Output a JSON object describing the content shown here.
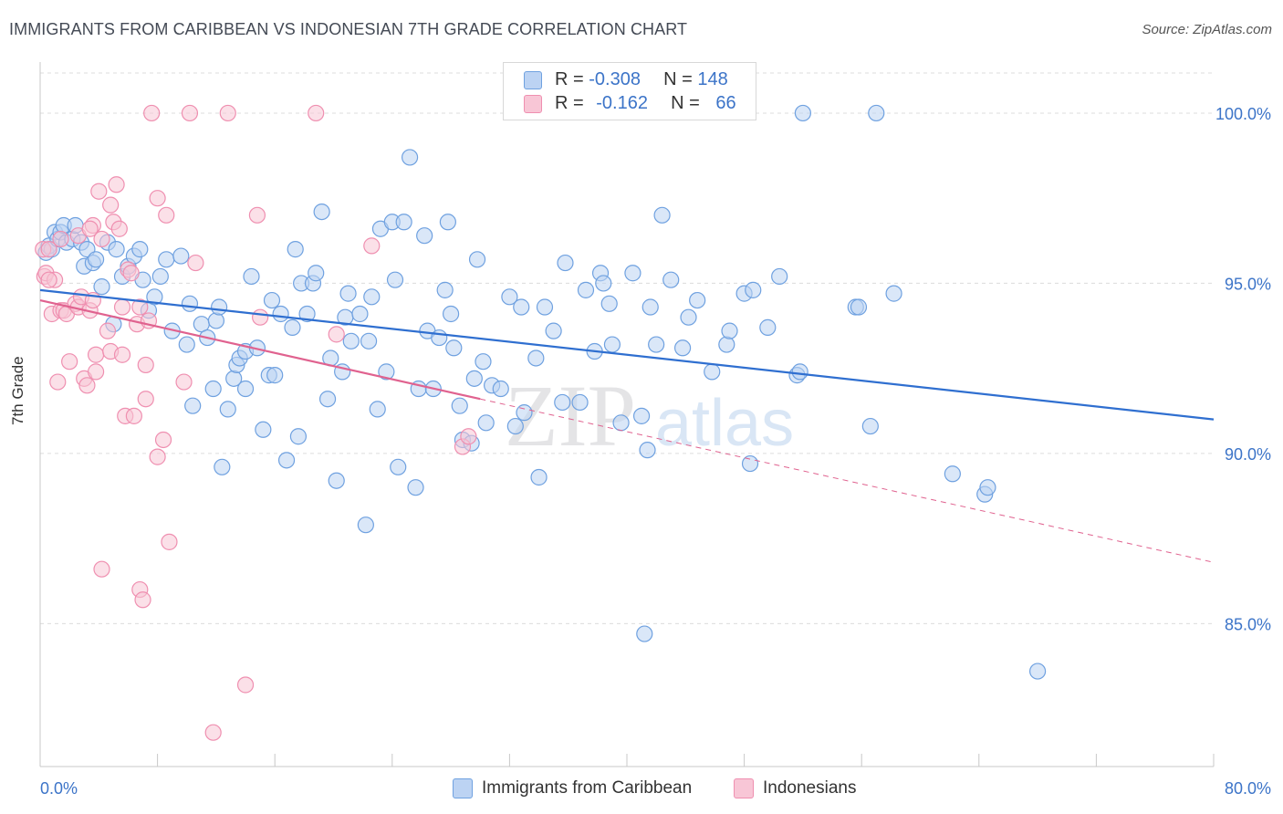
{
  "title": "IMMIGRANTS FROM CARIBBEAN VS INDONESIAN 7TH GRADE CORRELATION CHART",
  "source": "Source: ZipAtlas.com",
  "watermark": {
    "zip": "ZIP",
    "atlas": "atlas"
  },
  "legend": {
    "series1": {
      "r_label": "R = ",
      "r_value": "-0.308",
      "n_label": "N = ",
      "n_value": "148"
    },
    "series2": {
      "r_label": "R = ",
      "r_value": "-0.162",
      "n_label": "N = ",
      "n_value": "66"
    }
  },
  "bottom_legend": {
    "series1": "Immigrants from Caribbean",
    "series2": "Indonesians"
  },
  "colors": {
    "blue": "#6fa1e0",
    "blue_fill": "#bcd3f3",
    "blue_line": "#2f6fd0",
    "pink": "#ef8fb0",
    "pink_fill": "#f8c6d6",
    "pink_line": "#e0628f",
    "axis_text": "#3c74c8"
  },
  "chart_data": {
    "type": "scatter",
    "xlabel": "",
    "ylabel": "7th Grade",
    "xlim": [
      0,
      80
    ],
    "ylim": [
      80.8,
      101.5
    ],
    "x_tick_labels": [
      {
        "value": 0,
        "label": "0.0%"
      },
      {
        "value": 80,
        "label": "80.0%"
      }
    ],
    "y_ticks": [
      {
        "value": 85,
        "label": "85.0%"
      },
      {
        "value": 90,
        "label": "90.0%"
      },
      {
        "value": 95,
        "label": "95.0%"
      },
      {
        "value": 100,
        "label": "100.0%"
      }
    ],
    "x_minor_ticks": [
      0,
      8,
      16,
      24,
      32,
      40,
      48,
      56,
      64,
      72,
      80
    ],
    "series": [
      {
        "name": "Immigrants from Caribbean",
        "color": "#6fa1e0",
        "trend": {
          "x0": 0,
          "y0": 94.8,
          "x1": 80,
          "y1": 91.0,
          "style": "solid"
        },
        "points": [
          [
            0.4,
            95.9
          ],
          [
            0.6,
            96.1
          ],
          [
            0.8,
            96.0
          ],
          [
            1.0,
            96.5
          ],
          [
            1.2,
            96.3
          ],
          [
            1.4,
            96.5
          ],
          [
            1.6,
            96.7
          ],
          [
            1.8,
            96.2
          ],
          [
            2.2,
            96.3
          ],
          [
            2.4,
            96.7
          ],
          [
            2.8,
            96.2
          ],
          [
            3.0,
            95.5
          ],
          [
            3.2,
            96.0
          ],
          [
            3.6,
            95.6
          ],
          [
            3.8,
            95.7
          ],
          [
            4.2,
            94.9
          ],
          [
            4.6,
            96.2
          ],
          [
            5.0,
            93.8
          ],
          [
            5.2,
            96.0
          ],
          [
            5.6,
            95.2
          ],
          [
            6.0,
            95.5
          ],
          [
            6.4,
            95.8
          ],
          [
            6.8,
            96.0
          ],
          [
            7.0,
            95.1
          ],
          [
            7.4,
            94.2
          ],
          [
            7.8,
            94.6
          ],
          [
            8.2,
            95.2
          ],
          [
            8.6,
            95.7
          ],
          [
            9.0,
            93.6
          ],
          [
            9.6,
            95.8
          ],
          [
            10.0,
            93.2
          ],
          [
            10.2,
            94.4
          ],
          [
            10.4,
            91.4
          ],
          [
            11.0,
            93.8
          ],
          [
            11.4,
            93.4
          ],
          [
            11.8,
            91.9
          ],
          [
            12.0,
            93.9
          ],
          [
            12.2,
            94.3
          ],
          [
            12.4,
            89.6
          ],
          [
            12.8,
            91.3
          ],
          [
            13.2,
            92.2
          ],
          [
            13.4,
            92.6
          ],
          [
            13.6,
            92.8
          ],
          [
            14.0,
            93.0
          ],
          [
            14.0,
            91.9
          ],
          [
            14.4,
            95.2
          ],
          [
            14.8,
            93.1
          ],
          [
            15.2,
            90.7
          ],
          [
            15.6,
            92.3
          ],
          [
            15.8,
            94.5
          ],
          [
            16.0,
            92.3
          ],
          [
            16.4,
            94.1
          ],
          [
            16.8,
            89.8
          ],
          [
            17.2,
            93.7
          ],
          [
            17.4,
            96.0
          ],
          [
            17.6,
            90.5
          ],
          [
            17.8,
            95.0
          ],
          [
            18.2,
            94.1
          ],
          [
            18.6,
            95.0
          ],
          [
            18.8,
            95.3
          ],
          [
            19.2,
            97.1
          ],
          [
            19.6,
            91.6
          ],
          [
            19.8,
            92.8
          ],
          [
            20.2,
            89.2
          ],
          [
            20.6,
            92.4
          ],
          [
            20.8,
            94.0
          ],
          [
            21.0,
            94.7
          ],
          [
            21.2,
            93.3
          ],
          [
            21.8,
            94.1
          ],
          [
            22.2,
            87.9
          ],
          [
            22.4,
            93.3
          ],
          [
            22.6,
            94.6
          ],
          [
            23.0,
            91.3
          ],
          [
            23.2,
            96.6
          ],
          [
            23.6,
            92.4
          ],
          [
            24.0,
            96.8
          ],
          [
            24.2,
            95.1
          ],
          [
            24.4,
            89.6
          ],
          [
            24.8,
            96.8
          ],
          [
            25.2,
            98.7
          ],
          [
            25.6,
            89.0
          ],
          [
            25.8,
            91.9
          ],
          [
            26.2,
            96.4
          ],
          [
            26.4,
            93.6
          ],
          [
            26.8,
            91.9
          ],
          [
            27.2,
            93.4
          ],
          [
            27.6,
            94.8
          ],
          [
            27.8,
            96.8
          ],
          [
            28.0,
            94.1
          ],
          [
            28.2,
            93.1
          ],
          [
            28.6,
            91.4
          ],
          [
            28.8,
            90.4
          ],
          [
            29.4,
            90.3
          ],
          [
            29.6,
            92.2
          ],
          [
            29.8,
            95.7
          ],
          [
            30.2,
            92.7
          ],
          [
            30.4,
            90.9
          ],
          [
            30.8,
            92.0
          ],
          [
            31.4,
            91.9
          ],
          [
            32.0,
            94.6
          ],
          [
            32.4,
            90.8
          ],
          [
            32.8,
            94.3
          ],
          [
            33.0,
            91.2
          ],
          [
            33.8,
            92.8
          ],
          [
            34.0,
            89.3
          ],
          [
            34.4,
            94.3
          ],
          [
            35.0,
            93.6
          ],
          [
            35.6,
            91.5
          ],
          [
            35.8,
            95.6
          ],
          [
            36.8,
            91.5
          ],
          [
            37.2,
            94.8
          ],
          [
            37.8,
            93.0
          ],
          [
            38.2,
            95.3
          ],
          [
            38.4,
            95.0
          ],
          [
            38.8,
            94.4
          ],
          [
            39.0,
            93.2
          ],
          [
            39.6,
            90.9
          ],
          [
            40.4,
            95.3
          ],
          [
            41.0,
            91.1
          ],
          [
            41.4,
            90.1
          ],
          [
            41.6,
            94.3
          ],
          [
            42.0,
            93.2
          ],
          [
            42.4,
            97.0
          ],
          [
            43.0,
            95.1
          ],
          [
            43.8,
            93.1
          ],
          [
            44.2,
            94.0
          ],
          [
            44.8,
            94.5
          ],
          [
            45.8,
            92.4
          ],
          [
            46.8,
            93.2
          ],
          [
            47.0,
            93.6
          ],
          [
            48.0,
            94.7
          ],
          [
            48.4,
            89.7
          ],
          [
            48.6,
            94.8
          ],
          [
            49.6,
            93.7
          ],
          [
            50.4,
            95.2
          ],
          [
            51.6,
            92.3
          ],
          [
            51.8,
            92.4
          ],
          [
            52.0,
            100.0
          ],
          [
            55.6,
            94.3
          ],
          [
            55.8,
            94.3
          ],
          [
            56.6,
            90.8
          ],
          [
            57.0,
            100.0
          ],
          [
            58.2,
            94.7
          ],
          [
            62.2,
            89.4
          ],
          [
            64.4,
            88.8
          ],
          [
            64.6,
            89.0
          ],
          [
            68.0,
            83.6
          ],
          [
            41.2,
            84.7
          ]
        ]
      },
      {
        "name": "Indonesians",
        "color": "#ef8fb0",
        "trend": {
          "x0": 0,
          "y0": 94.5,
          "x1": 30.0,
          "y1": 91.6,
          "style": "solid",
          "ext_x1": 80,
          "ext_y1": 86.8
        },
        "points": [
          [
            0.2,
            96.0
          ],
          [
            0.3,
            95.2
          ],
          [
            0.4,
            95.3
          ],
          [
            0.6,
            96.0
          ],
          [
            0.8,
            94.1
          ],
          [
            1.0,
            95.1
          ],
          [
            1.2,
            92.1
          ],
          [
            1.4,
            94.2
          ],
          [
            1.6,
            94.2
          ],
          [
            1.8,
            94.1
          ],
          [
            2.0,
            92.7
          ],
          [
            2.4,
            94.4
          ],
          [
            2.6,
            94.3
          ],
          [
            2.8,
            94.6
          ],
          [
            3.0,
            92.2
          ],
          [
            3.2,
            92.0
          ],
          [
            3.4,
            94.2
          ],
          [
            3.6,
            94.5
          ],
          [
            3.6,
            96.7
          ],
          [
            3.8,
            92.4
          ],
          [
            3.8,
            92.9
          ],
          [
            4.0,
            97.7
          ],
          [
            4.2,
            96.3
          ],
          [
            4.6,
            93.6
          ],
          [
            4.8,
            93.0
          ],
          [
            4.8,
            97.3
          ],
          [
            5.0,
            96.8
          ],
          [
            5.2,
            97.9
          ],
          [
            5.4,
            96.6
          ],
          [
            5.6,
            94.3
          ],
          [
            5.6,
            92.9
          ],
          [
            5.8,
            91.1
          ],
          [
            6.0,
            95.4
          ],
          [
            6.2,
            95.3
          ],
          [
            6.4,
            91.1
          ],
          [
            6.6,
            93.8
          ],
          [
            6.8,
            94.3
          ],
          [
            6.8,
            86.0
          ],
          [
            7.0,
            85.7
          ],
          [
            7.2,
            92.6
          ],
          [
            7.2,
            91.6
          ],
          [
            7.4,
            93.9
          ],
          [
            7.6,
            100.0
          ],
          [
            8.0,
            97.5
          ],
          [
            8.0,
            89.9
          ],
          [
            8.4,
            90.4
          ],
          [
            8.6,
            97.0
          ],
          [
            8.8,
            87.4
          ],
          [
            9.8,
            92.1
          ],
          [
            10.2,
            100.0
          ],
          [
            10.6,
            95.6
          ],
          [
            11.8,
            81.8
          ],
          [
            12.8,
            100.0
          ],
          [
            14.0,
            83.2
          ],
          [
            14.8,
            97.0
          ],
          [
            15.0,
            94.0
          ],
          [
            18.8,
            100.0
          ],
          [
            20.2,
            93.5
          ],
          [
            22.6,
            96.1
          ],
          [
            28.8,
            90.2
          ],
          [
            29.2,
            90.5
          ],
          [
            4.2,
            86.6
          ],
          [
            1.4,
            96.3
          ],
          [
            2.6,
            96.4
          ],
          [
            0.6,
            95.1
          ],
          [
            3.4,
            96.6
          ]
        ]
      }
    ]
  }
}
